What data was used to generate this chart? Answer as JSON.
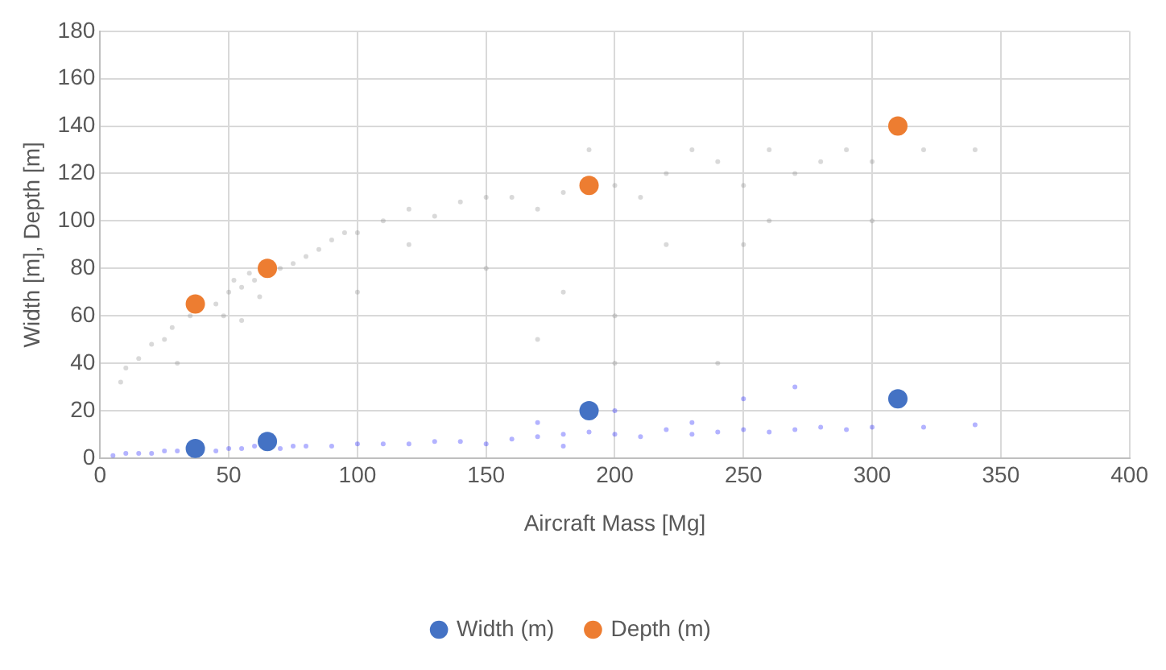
{
  "chart_data": {
    "type": "scatter",
    "xlabel": "Aircraft Mass [Mg]",
    "ylabel": "Width [m], Depth [m]",
    "xlim": [
      0,
      400
    ],
    "xticks": [
      0,
      50,
      100,
      150,
      200,
      250,
      300,
      350,
      400
    ],
    "ylim": [
      0,
      180
    ],
    "yticks": [
      0,
      20,
      40,
      60,
      80,
      100,
      120,
      140,
      160,
      180
    ],
    "grid": true,
    "legend": "bottom",
    "marker": "circle",
    "series": [
      {
        "color": "#8c8c8c",
        "x": [
          8,
          10,
          15,
          20,
          25,
          28,
          30,
          35,
          45,
          48,
          50,
          52,
          55,
          55,
          58,
          60,
          62,
          70,
          75,
          80,
          85,
          90,
          95,
          100,
          110,
          120,
          130,
          140,
          150,
          160,
          170,
          180,
          200,
          210,
          220,
          230,
          240,
          250,
          260,
          270,
          280,
          290,
          300,
          320,
          340,
          150,
          180,
          200,
          220,
          250,
          190,
          170,
          240,
          300,
          100,
          120,
          260,
          200
        ],
        "values": [
          32,
          38,
          42,
          48,
          50,
          55,
          40,
          60,
          65,
          60,
          70,
          75,
          72,
          58,
          78,
          75,
          68,
          80,
          82,
          85,
          88,
          92,
          95,
          95,
          100,
          105,
          102,
          108,
          110,
          110,
          105,
          112,
          115,
          110,
          120,
          130,
          125,
          115,
          130,
          120,
          125,
          130,
          125,
          130,
          130,
          80,
          70,
          60,
          90,
          90,
          130,
          50,
          40,
          100,
          70,
          90,
          100,
          40
        ]
      },
      {
        "color": "#1a1aff",
        "x": [
          5,
          10,
          15,
          20,
          25,
          30,
          45,
          50,
          55,
          60,
          70,
          75,
          80,
          90,
          100,
          110,
          120,
          130,
          140,
          150,
          160,
          170,
          180,
          190,
          200,
          210,
          220,
          230,
          240,
          250,
          260,
          270,
          280,
          290,
          300,
          320,
          340,
          170,
          200,
          250,
          270,
          180,
          230
        ],
        "values": [
          1,
          2,
          2,
          2,
          3,
          3,
          3,
          4,
          4,
          5,
          4,
          5,
          5,
          5,
          6,
          6,
          6,
          7,
          7,
          6,
          8,
          9,
          10,
          11,
          10,
          9,
          12,
          10,
          11,
          12,
          11,
          12,
          13,
          12,
          13,
          13,
          14,
          15,
          20,
          25,
          30,
          5,
          15
        ]
      },
      {
        "name": "Width (m)",
        "color": "#4472c4",
        "x": [
          37,
          65,
          190,
          310
        ],
        "values": [
          4,
          7,
          20,
          25
        ]
      },
      {
        "name": "Depth (m)",
        "color": "#ed7d31",
        "x": [
          37,
          65,
          190,
          310
        ],
        "values": [
          65,
          80,
          115,
          140
        ]
      }
    ]
  }
}
